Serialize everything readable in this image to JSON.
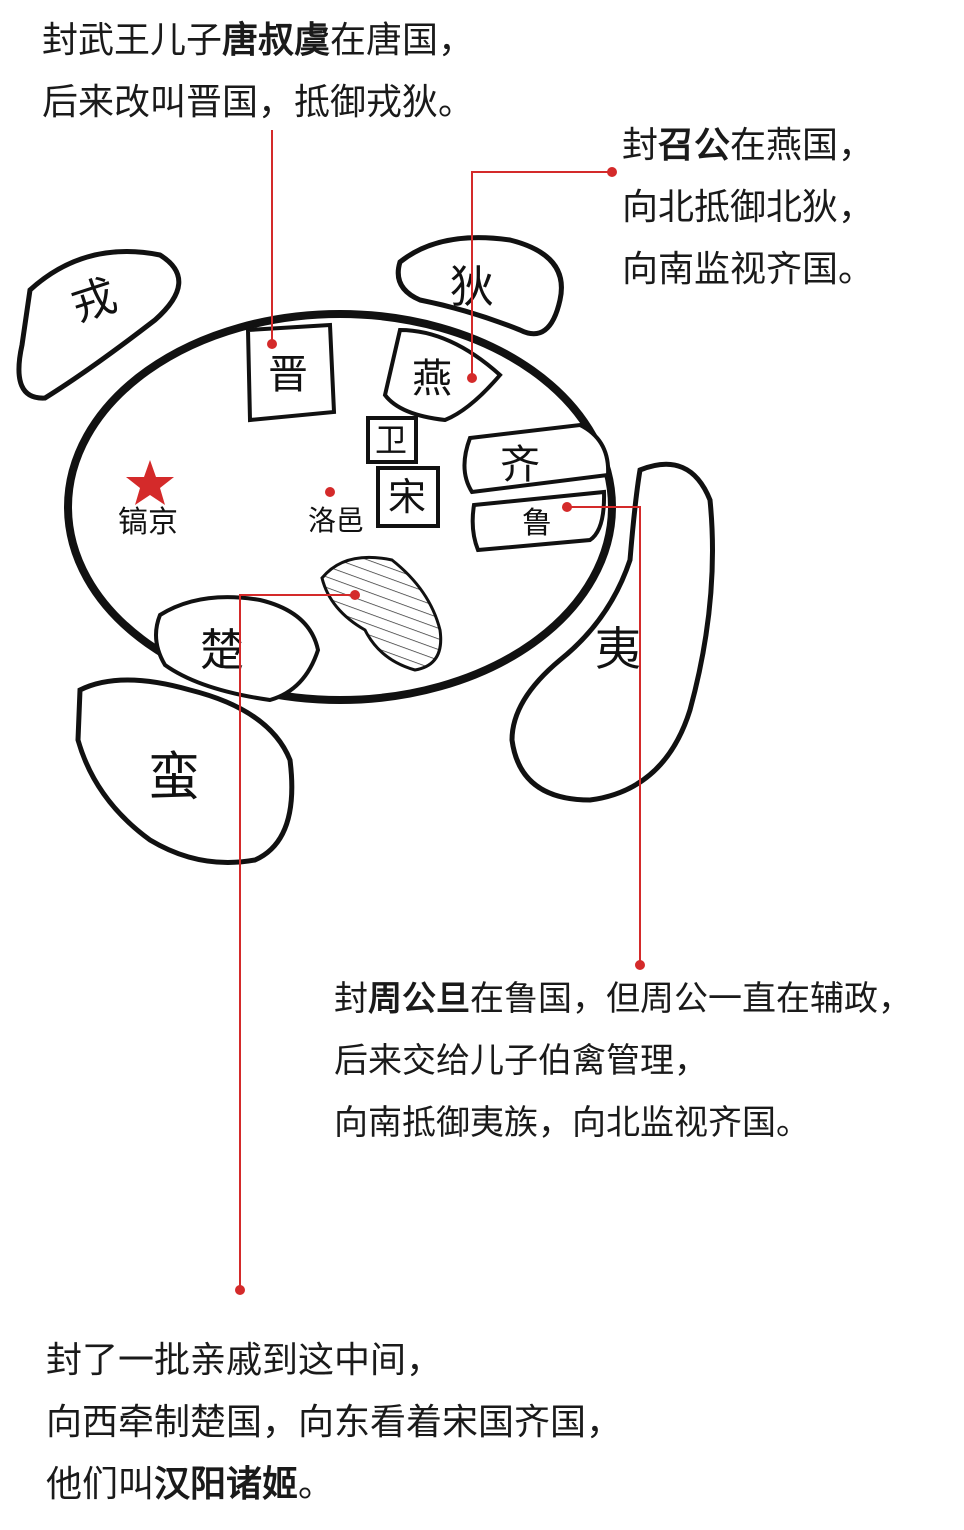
{
  "notes": {
    "jin": {
      "line1": {
        "pre": "封武王儿子",
        "bold": "唐叔虞",
        "post": "在唐国，"
      },
      "line2": "后来改叫晋国，抵御戎狄。"
    },
    "yan": {
      "line1": {
        "pre": "封",
        "bold": "召公",
        "post": "在燕国，"
      },
      "line2": "向北抵御北狄，",
      "line3": "向南监视齐国。"
    },
    "lu": {
      "line1": {
        "pre": "封",
        "bold": "周公旦",
        "post": "在鲁国，但周公一直在辅政，"
      },
      "line2": "后来交给儿子伯禽管理，",
      "line3": "向南抵御夷族，向北监视齐国。"
    },
    "hanyang": {
      "line1": "封了一批亲戚到这中间，",
      "line2": "向西牵制楚国，向东看着宋国齐国，",
      "line3": {
        "pre": "他们叫",
        "bold": "汉阳诸姬",
        "post": "。"
      }
    }
  },
  "map": {
    "regions": {
      "rong": "戎",
      "di": "狄",
      "yi": "夷",
      "man": "蛮",
      "jin": "晋",
      "yan": "燕",
      "wei": "卫",
      "song": "宋",
      "qi": "齐",
      "lu": "鲁",
      "chu": "楚"
    },
    "cities": {
      "haojing": "镐京",
      "luoyi": "洛邑"
    }
  },
  "colors": {
    "accent": "#d42a2a",
    "ink": "#111111"
  }
}
